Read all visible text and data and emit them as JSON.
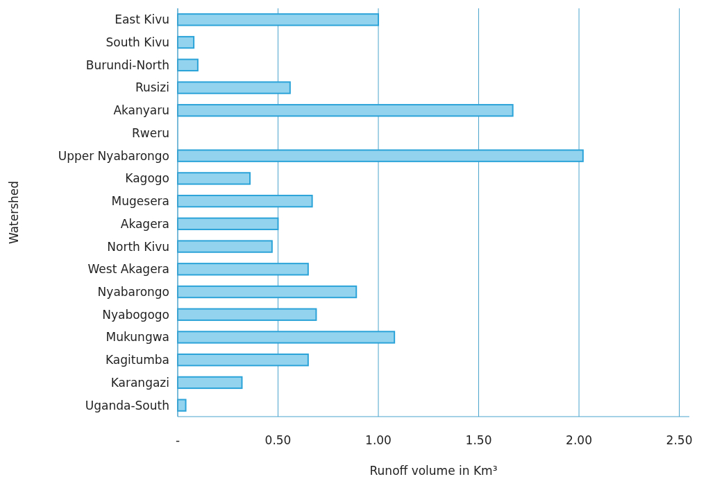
{
  "chart_data": {
    "type": "bar",
    "orientation": "horizontal",
    "xlabel": "Runoff volume in Km³",
    "ylabel": "Watershed",
    "categories": [
      "East Kivu",
      "South Kivu",
      "Burundi-North",
      "Rusizi",
      "Akanyaru",
      "Rweru",
      "Upper Nyabarongo",
      "Kagogo",
      "Mugesera",
      "Akagera",
      "North Kivu",
      "West Akagera",
      "Nyabarongo",
      "Nyabogogo",
      "Mukungwa",
      "Kagitumba",
      "Karangazi",
      "Uganda-South"
    ],
    "values": [
      1.0,
      0.08,
      0.1,
      0.56,
      1.67,
      0,
      2.02,
      0.36,
      0.67,
      0.5,
      0.47,
      0.65,
      0.89,
      0.69,
      1.08,
      0.65,
      0.32,
      0.04
    ],
    "color": "#93d3ee",
    "xlim": [
      0,
      2.55
    ],
    "xticks": [
      {
        "value": 0,
        "label": "-"
      },
      {
        "value": 0.5,
        "label": "0.50"
      },
      {
        "value": 1,
        "label": "1.00"
      },
      {
        "value": 1.5,
        "label": "1.50"
      },
      {
        "value": 2,
        "label": "2.00"
      },
      {
        "value": 2.5,
        "label": "2.50"
      }
    ],
    "grid": "x"
  }
}
